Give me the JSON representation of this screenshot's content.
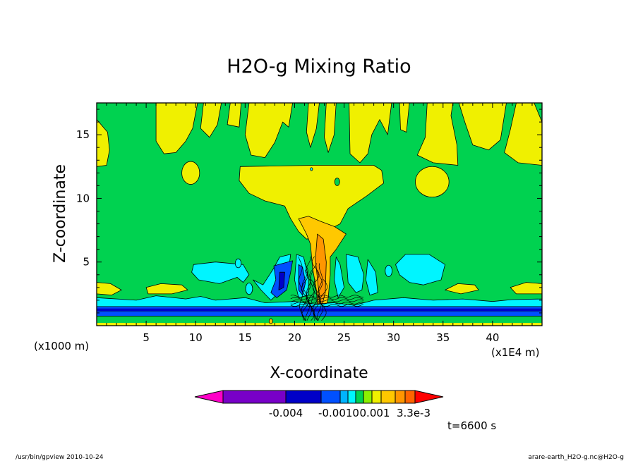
{
  "chart_data": {
    "type": "heatmap",
    "title": "H2O-g Mixing Ratio",
    "xlabel": "X-coordinate",
    "ylabel": "Z-coordinate",
    "x_unit_left": "(x1000 m)",
    "x_unit_right": "(x1E4 m)",
    "xlim": [
      0,
      45
    ],
    "ylim": [
      0,
      17.5
    ],
    "x_ticks": [
      "5",
      "10",
      "15",
      "20",
      "25",
      "30",
      "35",
      "40"
    ],
    "y_ticks": [
      "5",
      "10",
      "15"
    ],
    "time_label": "t=6600 s",
    "colorbar": {
      "colors": [
        "#ff00c8",
        "#7800c8",
        "#0000c8",
        "#0050ff",
        "#00b4ff",
        "#00f5ff",
        "#00d250",
        "#8cf000",
        "#f0f000",
        "#ffc800",
        "#ff9600",
        "#ff6400",
        "#ff0000"
      ],
      "tick_labels": [
        "-0.004",
        "-0.0010",
        "0.001",
        "3.3e-3"
      ]
    },
    "background_color": "#00d250",
    "field_colors": {
      "negative_weak": "#00f5ff",
      "negative": "#0050ff",
      "negative_strong": "#0000c8",
      "positive_weak": "#f0f000",
      "positive": "#ffc800",
      "positive_strong": "#ff9600"
    }
  },
  "footer": {
    "left": "/usr/bin/gpview   2010-10-24",
    "right": "arare-earth_H2O-g.nc@H2O-g"
  }
}
